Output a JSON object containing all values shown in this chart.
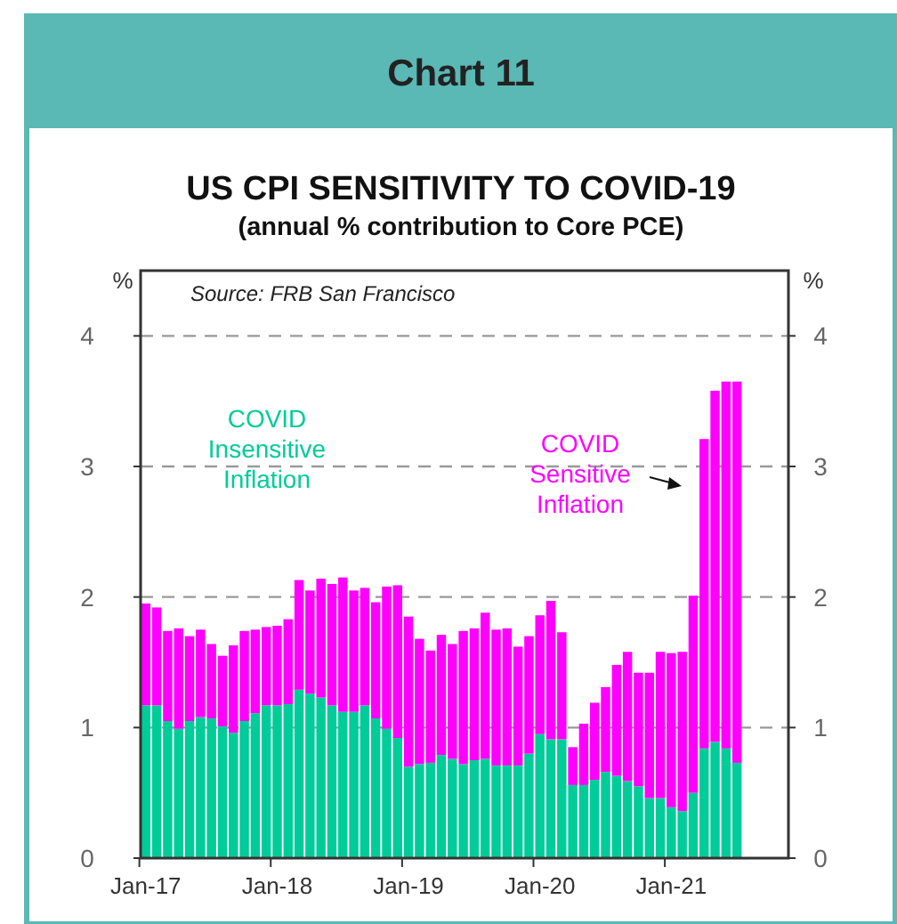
{
  "chart_data": {
    "type": "bar",
    "title": "US CPI SENSITIVITY TO COVID-19",
    "subtitle": "(annual % contribution to Core PCE)",
    "ylabel": "%",
    "y2label": "%",
    "annotations": [
      "Chart 11",
      "Source: FRB San Francisco"
    ],
    "categories": [
      "Jan-17",
      null,
      null,
      null,
      null,
      null,
      null,
      null,
      null,
      null,
      null,
      null,
      "Jan-18",
      null,
      null,
      null,
      null,
      null,
      null,
      null,
      null,
      null,
      null,
      null,
      "Jan-19",
      null,
      null,
      null,
      null,
      null,
      null,
      null,
      null,
      null,
      null,
      null,
      "Jan-20",
      null,
      null,
      null,
      null,
      null,
      null,
      null,
      null,
      null,
      null,
      null,
      "Jan-21",
      null,
      null,
      null,
      null,
      null,
      null
    ],
    "stacked": true,
    "series": [
      {
        "name": "COVID Insensitive Inflation",
        "color": "#00cc99",
        "values": [
          1.17,
          1.17,
          1.05,
          0.99,
          1.05,
          1.08,
          1.07,
          1.01,
          0.96,
          1.05,
          1.11,
          1.17,
          1.17,
          1.18,
          1.29,
          1.26,
          1.23,
          1.17,
          1.12,
          1.12,
          1.17,
          1.07,
          0.99,
          0.92,
          0.7,
          0.72,
          0.73,
          0.79,
          0.76,
          0.72,
          0.75,
          0.76,
          0.71,
          0.71,
          0.71,
          0.8,
          0.95,
          0.91,
          0.91,
          0.56,
          0.56,
          0.6,
          0.66,
          0.63,
          0.59,
          0.55,
          0.46,
          0.46,
          0.39,
          0.36,
          0.5,
          0.84,
          0.89,
          0.84,
          0.73
        ]
      },
      {
        "name": "COVID Sensitive Inflation",
        "color": "#ff00ff",
        "values": [
          0.78,
          0.75,
          0.69,
          0.77,
          0.65,
          0.67,
          0.57,
          0.54,
          0.67,
          0.69,
          0.64,
          0.6,
          0.61,
          0.65,
          0.84,
          0.79,
          0.91,
          0.93,
          1.03,
          0.93,
          0.9,
          0.89,
          1.09,
          1.17,
          1.15,
          0.96,
          0.86,
          0.92,
          0.88,
          1.02,
          1.01,
          1.12,
          1.04,
          1.05,
          0.91,
          0.9,
          0.91,
          1.06,
          0.82,
          0.29,
          0.47,
          0.59,
          0.65,
          0.85,
          0.99,
          0.87,
          0.96,
          1.12,
          1.18,
          1.22,
          1.51,
          2.37,
          2.69,
          2.81,
          2.92
        ]
      }
    ],
    "ylim": [
      0,
      4.5
    ],
    "yticks": [
      0,
      1,
      2,
      3,
      4
    ],
    "y2lim": [
      0,
      4.5
    ],
    "y2ticks": [
      0,
      1,
      2,
      3,
      4
    ],
    "grid": "y"
  }
}
